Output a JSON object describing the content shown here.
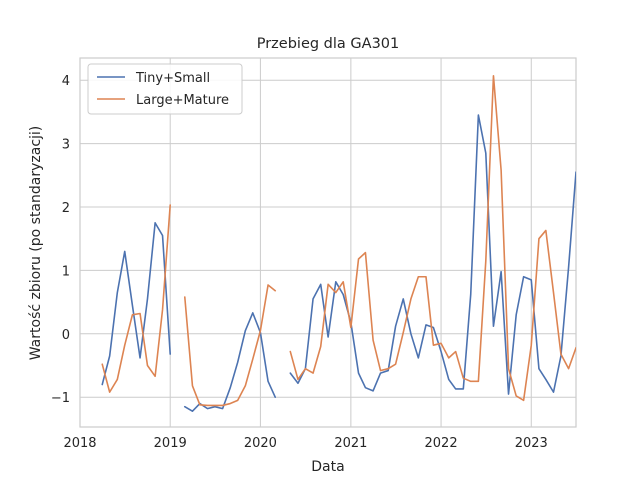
{
  "chart_data": {
    "type": "line",
    "title": "Przebieg dla GA301",
    "xlabel": "Data",
    "ylabel": "Wartość zbioru (po standaryzacji)",
    "x_tick_labels": [
      "2018",
      "2019",
      "2020",
      "2021",
      "2022",
      "2023"
    ],
    "y_ticks": [
      -1,
      0,
      1,
      2,
      3,
      4
    ],
    "y_tick_labels": [
      "−1",
      "0",
      "1",
      "2",
      "3",
      "4"
    ],
    "xlim": [
      "2018-01-01",
      "2023-07-01"
    ],
    "ylim": [
      -1.47,
      4.35
    ],
    "grid": true,
    "legend_position": "top-left",
    "series": [
      {
        "name": "Tiny+Small",
        "color": "#4c72b0",
        "points": [
          [
            "2018-04-01",
            -0.8
          ],
          [
            "2018-05-01",
            -0.35
          ],
          [
            "2018-06-01",
            0.65
          ],
          [
            "2018-07-01",
            1.3
          ],
          [
            "2018-08-01",
            0.45
          ],
          [
            "2018-09-01",
            -0.38
          ],
          [
            "2018-10-01",
            0.55
          ],
          [
            "2018-11-01",
            1.75
          ],
          [
            "2018-12-01",
            1.55
          ],
          [
            "2019-01-01",
            -0.32
          ],
          [
            "2019-02-01",
            null
          ],
          [
            "2019-03-01",
            -1.15
          ],
          [
            "2019-04-01",
            -1.22
          ],
          [
            "2019-05-01",
            -1.1
          ],
          [
            "2019-06-01",
            -1.18
          ],
          [
            "2019-07-01",
            -1.15
          ],
          [
            "2019-08-01",
            -1.18
          ],
          [
            "2019-09-01",
            -0.85
          ],
          [
            "2019-10-01",
            -0.45
          ],
          [
            "2019-11-01",
            0.05
          ],
          [
            "2019-12-01",
            0.33
          ],
          [
            "2020-01-01",
            0.02
          ],
          [
            "2020-02-01",
            -0.75
          ],
          [
            "2020-03-01",
            -1.0
          ],
          [
            "2020-04-01",
            null
          ],
          [
            "2020-05-01",
            -0.62
          ],
          [
            "2020-06-01",
            -0.78
          ],
          [
            "2020-07-01",
            -0.55
          ],
          [
            "2020-08-01",
            0.55
          ],
          [
            "2020-09-01",
            0.78
          ],
          [
            "2020-10-01",
            -0.05
          ],
          [
            "2020-11-01",
            0.82
          ],
          [
            "2020-12-01",
            0.62
          ],
          [
            "2021-01-01",
            0.18
          ],
          [
            "2021-02-01",
            -0.62
          ],
          [
            "2021-03-01",
            -0.85
          ],
          [
            "2021-04-01",
            -0.9
          ],
          [
            "2021-05-01",
            -0.62
          ],
          [
            "2021-06-01",
            -0.58
          ],
          [
            "2021-07-01",
            0.12
          ],
          [
            "2021-08-01",
            0.55
          ],
          [
            "2021-09-01",
            0.0
          ],
          [
            "2021-10-01",
            -0.38
          ],
          [
            "2021-11-01",
            0.14
          ],
          [
            "2021-12-01",
            0.1
          ],
          [
            "2022-01-01",
            -0.28
          ],
          [
            "2022-02-01",
            -0.72
          ],
          [
            "2022-03-01",
            -0.87
          ],
          [
            "2022-04-01",
            -0.87
          ],
          [
            "2022-05-01",
            0.62
          ],
          [
            "2022-06-01",
            3.45
          ],
          [
            "2022-07-01",
            2.85
          ],
          [
            "2022-08-01",
            0.12
          ],
          [
            "2022-09-01",
            0.98
          ],
          [
            "2022-10-01",
            -0.95
          ],
          [
            "2022-11-01",
            0.3
          ],
          [
            "2022-12-01",
            0.9
          ],
          [
            "2023-01-01",
            0.85
          ],
          [
            "2023-02-01",
            -0.55
          ],
          [
            "2023-03-01",
            -0.72
          ],
          [
            "2023-04-01",
            -0.92
          ],
          [
            "2023-05-01",
            -0.35
          ],
          [
            "2023-06-01",
            1.05
          ],
          [
            "2023-07-01",
            2.55
          ]
        ]
      },
      {
        "name": "Large+Mature",
        "color": "#dd8452",
        "points": [
          [
            "2018-04-01",
            -0.48
          ],
          [
            "2018-05-01",
            -0.92
          ],
          [
            "2018-06-01",
            -0.72
          ],
          [
            "2018-07-01",
            -0.18
          ],
          [
            "2018-08-01",
            0.3
          ],
          [
            "2018-09-01",
            0.32
          ],
          [
            "2018-10-01",
            -0.5
          ],
          [
            "2018-11-01",
            -0.67
          ],
          [
            "2018-12-01",
            0.38
          ],
          [
            "2019-01-01",
            2.03
          ],
          [
            "2019-02-01",
            null
          ],
          [
            "2019-03-01",
            0.58
          ],
          [
            "2019-04-01",
            -0.82
          ],
          [
            "2019-05-01",
            -1.12
          ],
          [
            "2019-06-01",
            -1.13
          ],
          [
            "2019-07-01",
            -1.13
          ],
          [
            "2019-08-01",
            -1.13
          ],
          [
            "2019-09-01",
            -1.1
          ],
          [
            "2019-10-01",
            -1.05
          ],
          [
            "2019-11-01",
            -0.82
          ],
          [
            "2019-12-01",
            -0.4
          ],
          [
            "2020-01-01",
            0.05
          ],
          [
            "2020-02-01",
            0.77
          ],
          [
            "2020-03-01",
            0.68
          ],
          [
            "2020-04-01",
            null
          ],
          [
            "2020-05-01",
            -0.28
          ],
          [
            "2020-06-01",
            -0.72
          ],
          [
            "2020-07-01",
            -0.55
          ],
          [
            "2020-08-01",
            -0.62
          ],
          [
            "2020-09-01",
            -0.2
          ],
          [
            "2020-10-01",
            0.78
          ],
          [
            "2020-11-01",
            0.65
          ],
          [
            "2020-12-01",
            0.82
          ],
          [
            "2021-01-01",
            0.1
          ],
          [
            "2021-02-01",
            1.18
          ],
          [
            "2021-03-01",
            1.28
          ],
          [
            "2021-04-01",
            -0.1
          ],
          [
            "2021-05-01",
            -0.58
          ],
          [
            "2021-06-01",
            -0.55
          ],
          [
            "2021-07-01",
            -0.48
          ],
          [
            "2021-08-01",
            0.02
          ],
          [
            "2021-09-01",
            0.55
          ],
          [
            "2021-10-01",
            0.9
          ],
          [
            "2021-11-01",
            0.9
          ],
          [
            "2021-12-01",
            -0.18
          ],
          [
            "2022-01-01",
            -0.15
          ],
          [
            "2022-02-01",
            -0.38
          ],
          [
            "2022-03-01",
            -0.28
          ],
          [
            "2022-04-01",
            -0.7
          ],
          [
            "2022-05-01",
            -0.75
          ],
          [
            "2022-06-01",
            -0.75
          ],
          [
            "2022-07-01",
            1.15
          ],
          [
            "2022-08-01",
            4.07
          ],
          [
            "2022-09-01",
            2.58
          ],
          [
            "2022-10-01",
            -0.55
          ],
          [
            "2022-11-01",
            -0.98
          ],
          [
            "2022-12-01",
            -1.05
          ],
          [
            "2023-01-01",
            -0.18
          ],
          [
            "2023-02-01",
            1.5
          ],
          [
            "2023-03-01",
            1.63
          ],
          [
            "2023-04-01",
            0.65
          ],
          [
            "2023-05-01",
            -0.32
          ],
          [
            "2023-06-01",
            -0.55
          ],
          [
            "2023-07-01",
            -0.22
          ]
        ]
      }
    ]
  }
}
